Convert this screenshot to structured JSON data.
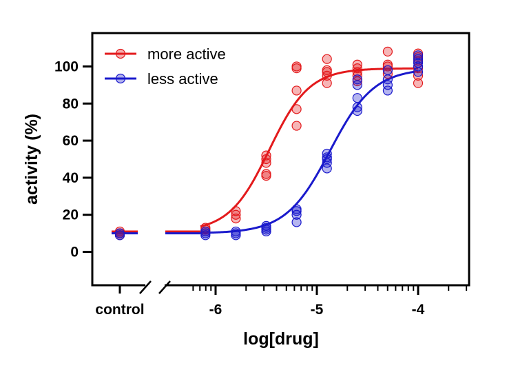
{
  "chart_data": {
    "type": "scatter",
    "title": "",
    "xlabel": "log[drug]",
    "ylabel": "activity (%)",
    "xlim": [
      -6.3,
      -3.5
    ],
    "ylim": [
      -18,
      118
    ],
    "x_ticks": [
      -6,
      -5,
      -4
    ],
    "x_tick_labels": [
      "-6",
      "-5",
      "-4"
    ],
    "y_ticks": [
      0,
      20,
      40,
      60,
      80,
      100
    ],
    "y_tick_labels": [
      "0",
      "20",
      "40",
      "60",
      "80",
      "100"
    ],
    "control_label": "control",
    "legend_position": "top-left",
    "series": [
      {
        "name": "more active",
        "color": "#e31a1c",
        "fit": {
          "bottom": 11,
          "top": 99,
          "logEC50": -5.47,
          "hill": 2.2
        },
        "control_values": [
          9,
          10,
          10,
          11
        ],
        "points": [
          [
            -6.1,
            11
          ],
          [
            -6.1,
            12
          ],
          [
            -6.1,
            13
          ],
          [
            -5.8,
            18
          ],
          [
            -5.8,
            20
          ],
          [
            -5.8,
            22
          ],
          [
            -5.5,
            41
          ],
          [
            -5.5,
            42
          ],
          [
            -5.5,
            48
          ],
          [
            -5.5,
            50
          ],
          [
            -5.5,
            52
          ],
          [
            -5.2,
            68
          ],
          [
            -5.2,
            77
          ],
          [
            -5.2,
            87
          ],
          [
            -5.2,
            99
          ],
          [
            -5.2,
            100
          ],
          [
            -4.9,
            91
          ],
          [
            -4.9,
            95
          ],
          [
            -4.9,
            97
          ],
          [
            -4.9,
            98
          ],
          [
            -4.9,
            104
          ],
          [
            -4.6,
            92
          ],
          [
            -4.6,
            95
          ],
          [
            -4.6,
            97
          ],
          [
            -4.6,
            99
          ],
          [
            -4.6,
            101
          ],
          [
            -4.3,
            96
          ],
          [
            -4.3,
            100
          ],
          [
            -4.3,
            101
          ],
          [
            -4.3,
            108
          ],
          [
            -4.0,
            91
          ],
          [
            -4.0,
            95
          ],
          [
            -4.0,
            99
          ],
          [
            -4.0,
            103
          ],
          [
            -4.0,
            105
          ],
          [
            -4.0,
            107
          ]
        ]
      },
      {
        "name": "less active",
        "color": "#1a1acc",
        "fit": {
          "bottom": 10,
          "top": 99,
          "logEC50": -4.87,
          "hill": 2.0
        },
        "control_values": [
          9,
          10
        ],
        "points": [
          [
            -6.1,
            9
          ],
          [
            -6.1,
            10
          ],
          [
            -6.1,
            11
          ],
          [
            -5.8,
            9
          ],
          [
            -5.8,
            10
          ],
          [
            -5.8,
            11
          ],
          [
            -5.5,
            11
          ],
          [
            -5.5,
            12
          ],
          [
            -5.5,
            13
          ],
          [
            -5.5,
            14
          ],
          [
            -5.2,
            16
          ],
          [
            -5.2,
            20
          ],
          [
            -5.2,
            22
          ],
          [
            -5.2,
            23
          ],
          [
            -4.9,
            45
          ],
          [
            -4.9,
            48
          ],
          [
            -4.9,
            50
          ],
          [
            -4.9,
            51
          ],
          [
            -4.9,
            53
          ],
          [
            -4.6,
            76
          ],
          [
            -4.6,
            78
          ],
          [
            -4.6,
            83
          ],
          [
            -4.6,
            90
          ],
          [
            -4.6,
            93
          ],
          [
            -4.3,
            87
          ],
          [
            -4.3,
            90
          ],
          [
            -4.3,
            93
          ],
          [
            -4.3,
            98
          ],
          [
            -4.0,
            97
          ],
          [
            -4.0,
            100
          ],
          [
            -4.0,
            102
          ],
          [
            -4.0,
            104
          ],
          [
            -4.0,
            106
          ]
        ]
      }
    ]
  }
}
